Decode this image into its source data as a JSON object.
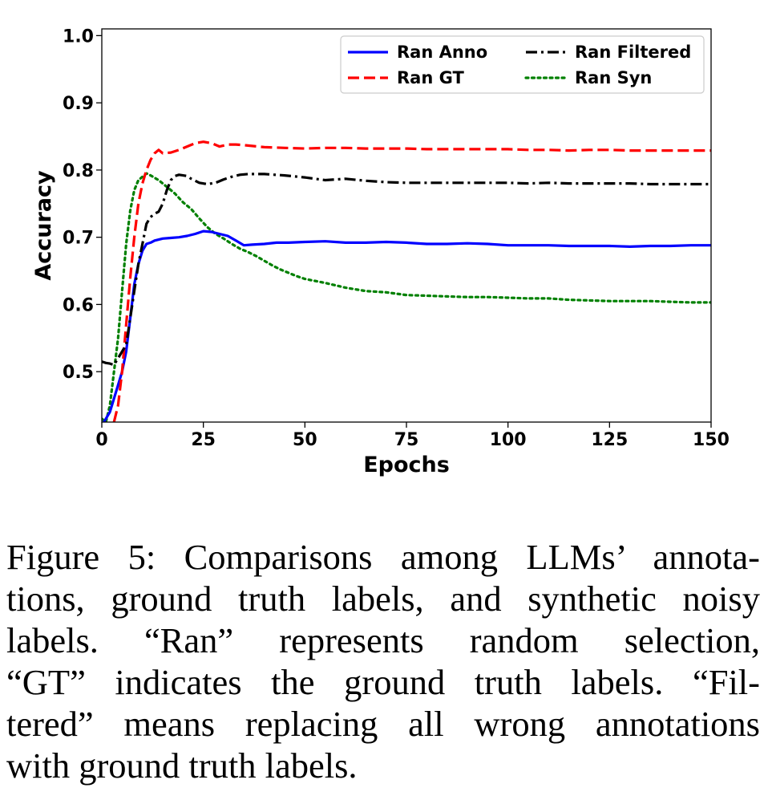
{
  "chart_data": {
    "type": "line",
    "xlabel": "Epochs",
    "ylabel": "Accuracy",
    "xlim": [
      0,
      150
    ],
    "ylim": [
      0.425,
      1.01
    ],
    "xticks": [
      "0",
      "25",
      "50",
      "75",
      "100",
      "125",
      "150"
    ],
    "yticks": [
      "0.5",
      "0.6",
      "0.7",
      "0.8",
      "0.9",
      "1.0"
    ],
    "grid": false,
    "legend_position": "top-right",
    "series": [
      {
        "name": "Ran Anno",
        "color": "#0000ff",
        "style": "solid",
        "x": [
          0,
          1,
          2,
          3,
          4,
          5,
          6,
          7,
          8,
          9,
          10,
          11,
          12,
          13,
          15,
          17,
          19,
          21,
          23,
          25,
          27,
          29,
          31,
          33,
          35,
          37,
          40,
          43,
          46,
          50,
          55,
          60,
          65,
          70,
          75,
          80,
          85,
          90,
          95,
          100,
          105,
          110,
          115,
          120,
          125,
          130,
          135,
          140,
          145,
          150
        ],
        "y": [
          0.42,
          0.43,
          0.44,
          0.46,
          0.48,
          0.5,
          0.53,
          0.58,
          0.63,
          0.66,
          0.68,
          0.69,
          0.692,
          0.695,
          0.698,
          0.699,
          0.7,
          0.702,
          0.705,
          0.709,
          0.708,
          0.705,
          0.702,
          0.695,
          0.688,
          0.689,
          0.69,
          0.692,
          0.692,
          0.693,
          0.694,
          0.692,
          0.692,
          0.693,
          0.692,
          0.69,
          0.69,
          0.691,
          0.69,
          0.688,
          0.688,
          0.688,
          0.687,
          0.687,
          0.687,
          0.686,
          0.687,
          0.687,
          0.688,
          0.688
        ]
      },
      {
        "name": "Ran GT",
        "color": "#ff0000",
        "style": "dashed",
        "x": [
          3,
          4,
          5,
          6,
          7,
          8,
          9,
          10,
          11,
          12,
          13,
          14,
          15,
          17,
          19,
          21,
          23,
          25,
          27,
          29,
          31,
          33,
          35,
          40,
          45,
          50,
          55,
          60,
          65,
          70,
          75,
          80,
          85,
          90,
          95,
          100,
          105,
          110,
          115,
          120,
          125,
          130,
          135,
          140,
          145,
          150
        ],
        "y": [
          0.425,
          0.45,
          0.5,
          0.57,
          0.64,
          0.7,
          0.75,
          0.78,
          0.8,
          0.815,
          0.825,
          0.83,
          0.825,
          0.826,
          0.83,
          0.835,
          0.84,
          0.842,
          0.84,
          0.835,
          0.838,
          0.838,
          0.837,
          0.834,
          0.833,
          0.832,
          0.833,
          0.833,
          0.832,
          0.832,
          0.832,
          0.831,
          0.831,
          0.831,
          0.831,
          0.831,
          0.83,
          0.83,
          0.829,
          0.83,
          0.83,
          0.829,
          0.829,
          0.829,
          0.829,
          0.829
        ]
      },
      {
        "name": "Ran Filtered",
        "color": "#000000",
        "style": "dashdot",
        "x": [
          0,
          1,
          2,
          3,
          4,
          5,
          6,
          7,
          8,
          9,
          10,
          11,
          12,
          13,
          14,
          15,
          16,
          17,
          18,
          19,
          20,
          21,
          22,
          24,
          26,
          28,
          30,
          32,
          34,
          36,
          38,
          40,
          45,
          50,
          55,
          60,
          65,
          70,
          75,
          80,
          85,
          90,
          95,
          100,
          105,
          110,
          115,
          120,
          125,
          130,
          135,
          140,
          145,
          150
        ],
        "y": [
          0.515,
          0.513,
          0.512,
          0.51,
          0.52,
          0.53,
          0.54,
          0.58,
          0.62,
          0.66,
          0.69,
          0.72,
          0.73,
          0.735,
          0.738,
          0.75,
          0.77,
          0.785,
          0.791,
          0.793,
          0.792,
          0.791,
          0.787,
          0.781,
          0.779,
          0.781,
          0.786,
          0.79,
          0.793,
          0.794,
          0.794,
          0.794,
          0.792,
          0.789,
          0.785,
          0.787,
          0.784,
          0.782,
          0.781,
          0.781,
          0.781,
          0.781,
          0.781,
          0.781,
          0.78,
          0.781,
          0.78,
          0.78,
          0.78,
          0.78,
          0.779,
          0.779,
          0.779,
          0.779
        ]
      },
      {
        "name": "Ran Syn",
        "color": "#008000",
        "style": "dotted",
        "x": [
          0,
          1,
          2,
          3,
          4,
          5,
          6,
          7,
          8,
          9,
          10,
          11,
          12,
          14,
          16,
          18,
          20,
          22,
          24,
          26,
          28,
          30,
          32,
          34,
          36,
          38,
          40,
          42,
          44,
          46,
          48,
          50,
          55,
          60,
          65,
          70,
          75,
          80,
          85,
          90,
          95,
          100,
          105,
          110,
          115,
          120,
          125,
          130,
          135,
          140,
          145,
          150
        ],
        "y": [
          0.43,
          0.425,
          0.45,
          0.5,
          0.55,
          0.62,
          0.69,
          0.74,
          0.77,
          0.785,
          0.79,
          0.795,
          0.792,
          0.785,
          0.775,
          0.765,
          0.752,
          0.742,
          0.728,
          0.715,
          0.705,
          0.698,
          0.69,
          0.683,
          0.678,
          0.672,
          0.665,
          0.658,
          0.652,
          0.647,
          0.642,
          0.638,
          0.632,
          0.625,
          0.62,
          0.618,
          0.614,
          0.613,
          0.612,
          0.611,
          0.611,
          0.61,
          0.609,
          0.609,
          0.607,
          0.606,
          0.605,
          0.605,
          0.605,
          0.604,
          0.603,
          0.603
        ]
      }
    ]
  },
  "caption": {
    "lines": [
      "Figure 5:  Comparisons among LLMs’ annota-",
      "tions, ground truth labels, and synthetic noisy",
      "labels.   “Ran” represents random selection,",
      "“GT” indicates the ground truth labels.  “Fil-",
      "tered” means replacing all wrong annotations",
      "with ground truth labels."
    ]
  }
}
